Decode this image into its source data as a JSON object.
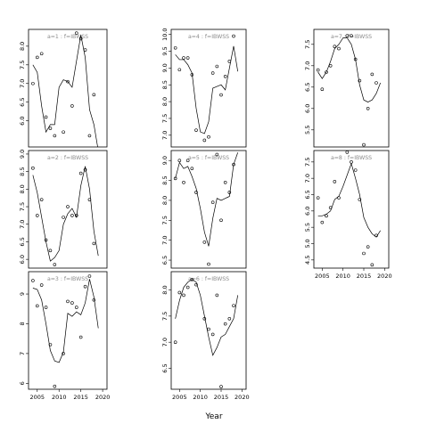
{
  "chart_data": {
    "type": "scatter",
    "xlabel": "Year",
    "ylabel": "",
    "x_ticks": [
      2005,
      2010,
      2015,
      2020
    ],
    "x_tick_labels": [
      "2005",
      "2010",
      "2015",
      "2020"
    ],
    "xlim": [
      2003,
      2021
    ],
    "panels": [
      {
        "title": "a=1 : f=IBWSS",
        "ylim": [
          5.3,
          8.45
        ],
        "y_ticks": [
          6.0,
          6.5,
          7.0,
          7.5,
          8.0
        ],
        "y_tick_labels": [
          "6.0",
          "6.5",
          "7.0",
          "7.5",
          "8.0"
        ],
        "show_x_ticks": false,
        "points": [
          [
            2004,
            7.0
          ],
          [
            2005,
            7.7
          ],
          [
            2006,
            7.8
          ],
          [
            2007,
            6.1
          ],
          [
            2008,
            5.8
          ],
          [
            2009,
            5.6
          ],
          [
            2011,
            5.7
          ],
          [
            2012,
            7.05
          ],
          [
            2013,
            6.4
          ],
          [
            2014,
            8.35
          ],
          [
            2015,
            8.2
          ],
          [
            2016,
            7.9
          ],
          [
            2017,
            5.6
          ],
          [
            2018,
            6.7
          ]
        ],
        "fit": [
          [
            2004,
            7.5
          ],
          [
            2005,
            7.3
          ],
          [
            2006,
            6.4
          ],
          [
            2007,
            5.7
          ],
          [
            2008,
            5.9
          ],
          [
            2009,
            5.9
          ],
          [
            2010,
            6.9
          ],
          [
            2011,
            7.1
          ],
          [
            2012,
            7.05
          ],
          [
            2013,
            6.9
          ],
          [
            2014,
            7.6
          ],
          [
            2015,
            8.3
          ],
          [
            2016,
            7.7
          ],
          [
            2017,
            6.3
          ],
          [
            2018,
            5.9
          ],
          [
            2019,
            5.2
          ]
        ]
      },
      {
        "title": "a=2 : f=IBWSS",
        "ylim": [
          5.75,
          9.1
        ],
        "y_ticks": [
          6.0,
          6.5,
          7.0,
          7.5,
          8.0,
          8.5,
          9.0
        ],
        "y_tick_labels": [
          "6.0",
          "6.5",
          "7.0",
          "7.5",
          "8.0",
          "8.5",
          "9.0"
        ],
        "show_x_ticks": false,
        "points": [
          [
            2004,
            8.6
          ],
          [
            2005,
            7.25
          ],
          [
            2006,
            7.7
          ],
          [
            2007,
            6.55
          ],
          [
            2008,
            6.25
          ],
          [
            2009,
            5.85
          ],
          [
            2011,
            7.2
          ],
          [
            2012,
            7.5
          ],
          [
            2013,
            7.25
          ],
          [
            2014,
            7.25
          ],
          [
            2015,
            8.45
          ],
          [
            2016,
            8.55
          ],
          [
            2017,
            7.7
          ],
          [
            2018,
            6.45
          ]
        ],
        "fit": [
          [
            2004,
            8.4
          ],
          [
            2005,
            7.9
          ],
          [
            2006,
            7.2
          ],
          [
            2007,
            6.5
          ],
          [
            2008,
            5.95
          ],
          [
            2009,
            6.05
          ],
          [
            2010,
            6.25
          ],
          [
            2011,
            7.0
          ],
          [
            2012,
            7.3
          ],
          [
            2013,
            7.45
          ],
          [
            2014,
            7.2
          ],
          [
            2015,
            8.1
          ],
          [
            2016,
            8.65
          ],
          [
            2017,
            8.0
          ],
          [
            2018,
            6.8
          ],
          [
            2019,
            6.1
          ]
        ]
      },
      {
        "title": "a=3 : f=IBWSS",
        "ylim": [
          5.8,
          9.75
        ],
        "y_ticks": [
          6,
          7,
          8,
          9
        ],
        "y_tick_labels": [
          "6",
          "7",
          "8",
          "9"
        ],
        "show_x_ticks": true,
        "points": [
          [
            2004,
            9.45
          ],
          [
            2005,
            8.6
          ],
          [
            2006,
            9.3
          ],
          [
            2007,
            8.55
          ],
          [
            2008,
            7.3
          ],
          [
            2009,
            5.9
          ],
          [
            2011,
            7.0
          ],
          [
            2012,
            8.75
          ],
          [
            2013,
            8.7
          ],
          [
            2014,
            8.55
          ],
          [
            2015,
            7.55
          ],
          [
            2016,
            9.25
          ],
          [
            2017,
            9.6
          ],
          [
            2018,
            8.8
          ]
        ],
        "fit": [
          [
            2004,
            9.2
          ],
          [
            2005,
            9.15
          ],
          [
            2006,
            8.8
          ],
          [
            2007,
            8.0
          ],
          [
            2008,
            7.1
          ],
          [
            2009,
            6.75
          ],
          [
            2010,
            6.7
          ],
          [
            2011,
            7.05
          ],
          [
            2012,
            8.35
          ],
          [
            2013,
            8.25
          ],
          [
            2014,
            8.4
          ],
          [
            2015,
            8.3
          ],
          [
            2016,
            8.7
          ],
          [
            2017,
            9.5
          ],
          [
            2018,
            8.9
          ],
          [
            2019,
            7.85
          ]
        ]
      },
      {
        "title": "a=4 : f=IBWSS",
        "ylim": [
          6.65,
          10.15
        ],
        "y_ticks": [
          7.0,
          7.5,
          8.0,
          8.5,
          9.0,
          9.5,
          10.0
        ],
        "y_tick_labels": [
          "7.0",
          "7.5",
          "8.0",
          "8.5",
          "9.0",
          "9.5",
          "10.0"
        ],
        "show_x_ticks": false,
        "points": [
          [
            2004,
            9.6
          ],
          [
            2005,
            8.95
          ],
          [
            2006,
            9.3
          ],
          [
            2007,
            9.3
          ],
          [
            2008,
            8.8
          ],
          [
            2009,
            7.15
          ],
          [
            2011,
            6.85
          ],
          [
            2012,
            6.95
          ],
          [
            2013,
            8.85
          ],
          [
            2014,
            9.05
          ],
          [
            2015,
            8.2
          ],
          [
            2016,
            8.75
          ],
          [
            2017,
            9.2
          ],
          [
            2018,
            9.95
          ]
        ],
        "fit": [
          [
            2004,
            9.4
          ],
          [
            2005,
            9.25
          ],
          [
            2006,
            9.25
          ],
          [
            2007,
            9.1
          ],
          [
            2008,
            8.85
          ],
          [
            2009,
            7.8
          ],
          [
            2010,
            7.1
          ],
          [
            2011,
            7.05
          ],
          [
            2012,
            7.4
          ],
          [
            2013,
            8.4
          ],
          [
            2014,
            8.45
          ],
          [
            2015,
            8.5
          ],
          [
            2016,
            8.35
          ],
          [
            2017,
            9.0
          ],
          [
            2018,
            9.65
          ],
          [
            2019,
            8.9
          ]
        ]
      },
      {
        "title": "a=5 : f=IBWSS",
        "ylim": [
          6.3,
          9.25
        ],
        "y_ticks": [
          6.5,
          7.0,
          7.5,
          8.0,
          8.5,
          9.0
        ],
        "y_tick_labels": [
          "6.5",
          "7.0",
          "7.5",
          "8.0",
          "8.5",
          "9.0"
        ],
        "show_x_ticks": false,
        "points": [
          [
            2004,
            8.55
          ],
          [
            2005,
            9.0
          ],
          [
            2006,
            8.45
          ],
          [
            2007,
            9.0
          ],
          [
            2008,
            8.8
          ],
          [
            2009,
            8.2
          ],
          [
            2011,
            6.95
          ],
          [
            2012,
            6.4
          ],
          [
            2013,
            7.95
          ],
          [
            2014,
            9.15
          ],
          [
            2015,
            7.5
          ],
          [
            2016,
            8.45
          ],
          [
            2017,
            8.2
          ],
          [
            2018,
            8.9
          ]
        ],
        "fit": [
          [
            2004,
            8.55
          ],
          [
            2005,
            8.95
          ],
          [
            2006,
            8.8
          ],
          [
            2007,
            8.85
          ],
          [
            2008,
            8.6
          ],
          [
            2009,
            8.3
          ],
          [
            2010,
            7.8
          ],
          [
            2011,
            7.2
          ],
          [
            2012,
            6.85
          ],
          [
            2013,
            7.55
          ],
          [
            2014,
            8.05
          ],
          [
            2015,
            8.0
          ],
          [
            2016,
            8.05
          ],
          [
            2017,
            8.1
          ],
          [
            2018,
            8.9
          ],
          [
            2019,
            9.2
          ]
        ]
      },
      {
        "title": "a=6 : f=IBWSS",
        "ylim": [
          6.1,
          8.35
        ],
        "y_ticks": [
          6.5,
          7.0,
          7.5,
          8.0
        ],
        "y_tick_labels": [
          "6.5",
          "7.0",
          "7.5",
          "8.0"
        ],
        "show_x_ticks": true,
        "points": [
          [
            2004,
            7.0
          ],
          [
            2005,
            7.95
          ],
          [
            2006,
            7.9
          ],
          [
            2007,
            8.05
          ],
          [
            2008,
            8.2
          ],
          [
            2009,
            8.1
          ],
          [
            2011,
            7.45
          ],
          [
            2012,
            7.25
          ],
          [
            2013,
            7.15
          ],
          [
            2014,
            7.9
          ],
          [
            2015,
            6.15
          ],
          [
            2016,
            7.35
          ],
          [
            2017,
            7.45
          ],
          [
            2018,
            7.7
          ]
        ],
        "fit": [
          [
            2004,
            7.45
          ],
          [
            2005,
            7.8
          ],
          [
            2006,
            8.05
          ],
          [
            2007,
            8.15
          ],
          [
            2008,
            8.2
          ],
          [
            2009,
            8.15
          ],
          [
            2010,
            7.9
          ],
          [
            2011,
            7.5
          ],
          [
            2012,
            7.1
          ],
          [
            2013,
            6.75
          ],
          [
            2014,
            6.9
          ],
          [
            2015,
            7.1
          ],
          [
            2016,
            7.15
          ],
          [
            2017,
            7.3
          ],
          [
            2018,
            7.45
          ],
          [
            2019,
            7.9
          ]
        ]
      },
      {
        "title": "a=7 : f=IBWSS",
        "ylim": [
          5.1,
          7.85
        ],
        "y_ticks": [
          5.5,
          6.0,
          6.5,
          7.0,
          7.5
        ],
        "y_tick_labels": [
          "5.5",
          "6.0",
          "6.5",
          "7.0",
          "7.5"
        ],
        "show_x_ticks": false,
        "points": [
          [
            2004,
            6.9
          ],
          [
            2005,
            6.45
          ],
          [
            2006,
            6.85
          ],
          [
            2007,
            7.0
          ],
          [
            2008,
            7.45
          ],
          [
            2009,
            7.4
          ],
          [
            2011,
            7.7
          ],
          [
            2012,
            7.7
          ],
          [
            2013,
            7.15
          ],
          [
            2014,
            6.65
          ],
          [
            2015,
            5.15
          ],
          [
            2016,
            6.0
          ],
          [
            2017,
            6.8
          ],
          [
            2018,
            6.6
          ]
        ],
        "fit": [
          [
            2004,
            6.85
          ],
          [
            2005,
            6.7
          ],
          [
            2006,
            6.85
          ],
          [
            2007,
            7.1
          ],
          [
            2008,
            7.4
          ],
          [
            2009,
            7.5
          ],
          [
            2010,
            7.65
          ],
          [
            2011,
            7.65
          ],
          [
            2012,
            7.5
          ],
          [
            2013,
            7.15
          ],
          [
            2014,
            6.55
          ],
          [
            2015,
            6.2
          ],
          [
            2016,
            6.15
          ],
          [
            2017,
            6.2
          ],
          [
            2018,
            6.35
          ],
          [
            2019,
            6.6
          ]
        ]
      },
      {
        "title": "a=8 : f=IBWSS",
        "ylim": [
          4.25,
          7.85
        ],
        "y_ticks": [
          4.5,
          5.0,
          5.5,
          6.0,
          6.5,
          7.0,
          7.5
        ],
        "y_tick_labels": [
          "4.5",
          "5.0",
          "5.5",
          "6.0",
          "6.5",
          "7.0",
          "7.5"
        ],
        "show_x_ticks": true,
        "points": [
          [
            2004,
            6.4
          ],
          [
            2005,
            5.65
          ],
          [
            2006,
            5.85
          ],
          [
            2007,
            6.1
          ],
          [
            2008,
            6.9
          ],
          [
            2009,
            6.4
          ],
          [
            2011,
            7.8
          ],
          [
            2012,
            7.5
          ],
          [
            2013,
            7.25
          ],
          [
            2014,
            6.35
          ],
          [
            2015,
            4.7
          ],
          [
            2016,
            4.9
          ],
          [
            2017,
            4.35
          ],
          [
            2018,
            5.25
          ]
        ],
        "fit": [
          [
            2004,
            5.85
          ],
          [
            2005,
            5.85
          ],
          [
            2006,
            5.9
          ],
          [
            2007,
            6.0
          ],
          [
            2008,
            6.35
          ],
          [
            2009,
            6.45
          ],
          [
            2010,
            6.75
          ],
          [
            2011,
            7.1
          ],
          [
            2012,
            7.45
          ],
          [
            2013,
            7.0
          ],
          [
            2014,
            6.5
          ],
          [
            2015,
            5.8
          ],
          [
            2016,
            5.5
          ],
          [
            2017,
            5.3
          ],
          [
            2018,
            5.2
          ],
          [
            2019,
            5.4
          ]
        ]
      }
    ]
  }
}
